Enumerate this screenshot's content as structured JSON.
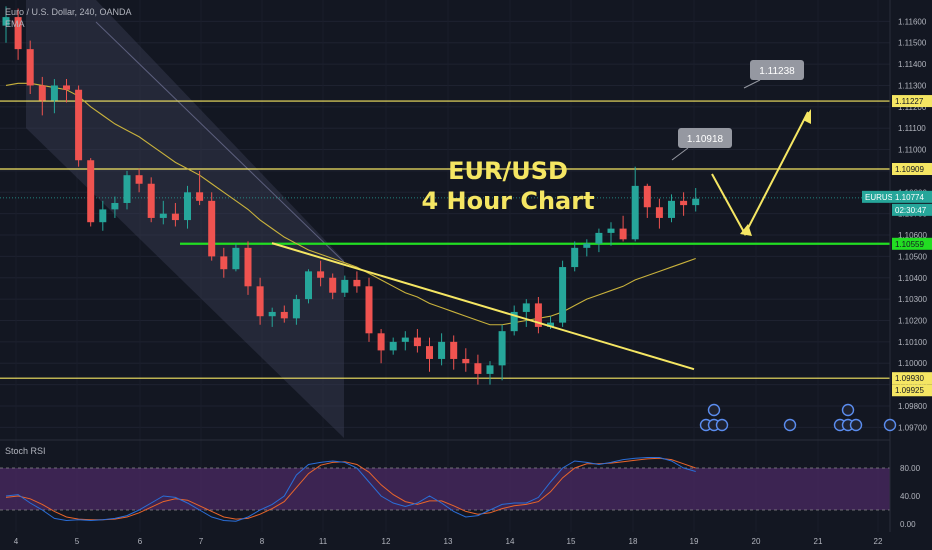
{
  "header": {
    "symbol_line": "Euro / U.S. Dollar, 240, OANDA",
    "indicator": "EMA"
  },
  "annotation": {
    "line1": "EUR/USD",
    "line2": "4 Hour Chart"
  },
  "callouts": [
    {
      "text": "1.11238",
      "price": 1.11238
    },
    {
      "text": "1.10918",
      "price": 1.10918
    }
  ],
  "price_axis": {
    "ticks": [
      "1.11600",
      "1.11500",
      "1.11400",
      "1.11300",
      "1.11200",
      "1.11100",
      "1.11000",
      "1.10900",
      "1.10800",
      "1.10700",
      "1.10600",
      "1.10500",
      "1.10400",
      "1.10300",
      "1.10200",
      "1.10100",
      "1.10000",
      "1.09900",
      "1.09800",
      "1.09700"
    ],
    "tags": [
      {
        "text": "1.11227",
        "price": 1.11227,
        "color": "#f5e663"
      },
      {
        "text": "1.10909",
        "price": 1.10909,
        "color": "#f5e663"
      },
      {
        "text": "EURUSD",
        "price": 1.10774,
        "color": "#26a69a"
      },
      {
        "text": "1.10774",
        "price": 1.10774,
        "color": "#26a69a"
      },
      {
        "text": "02:30:47",
        "price": 1.107,
        "color": "#26a69a"
      },
      {
        "text": "1.10559",
        "price": 1.10559,
        "color": "#22dd22"
      },
      {
        "text": "1.09930",
        "price": 1.0993,
        "color": "#f5e663"
      },
      {
        "text": "1.09925",
        "price": 1.09925,
        "color": "#f5e663"
      }
    ]
  },
  "time_axis": {
    "labels": [
      "4",
      "5",
      "6",
      "7",
      "8",
      "11",
      "12",
      "13",
      "14",
      "15",
      "18",
      "19",
      "20",
      "21",
      "22"
    ]
  },
  "rsi": {
    "title": "Stoch RSI",
    "ticks": [
      "80.00",
      "40.00",
      "0.00"
    ]
  },
  "colors": {
    "up": "#26a69a",
    "down": "#ef5350",
    "level": "#f5e663",
    "support": "#22dd22",
    "ema": "#c9b23c",
    "rsi_k": "#2a6ed8",
    "rsi_d": "#e8652b",
    "rsi_band": "#4b2a63"
  },
  "chart_data": {
    "type": "candlestick",
    "price_range": [
      1.0965,
      1.117
    ],
    "horizontal_levels": [
      1.11227,
      1.10909,
      1.0993
    ],
    "support_level": 1.10559,
    "last_price": 1.10774,
    "candles": [
      {
        "o": 1.1158,
        "h": 1.1167,
        "l": 1.115,
        "c": 1.1162
      },
      {
        "o": 1.1162,
        "h": 1.1166,
        "l": 1.1142,
        "c": 1.1147
      },
      {
        "o": 1.1147,
        "h": 1.1151,
        "l": 1.1126,
        "c": 1.113
      },
      {
        "o": 1.113,
        "h": 1.1134,
        "l": 1.1116,
        "c": 1.1123
      },
      {
        "o": 1.1123,
        "h": 1.1133,
        "l": 1.1117,
        "c": 1.113
      },
      {
        "o": 1.113,
        "h": 1.1133,
        "l": 1.1122,
        "c": 1.1128
      },
      {
        "o": 1.1128,
        "h": 1.113,
        "l": 1.1092,
        "c": 1.1095
      },
      {
        "o": 1.1095,
        "h": 1.1096,
        "l": 1.1064,
        "c": 1.1066
      },
      {
        "o": 1.1066,
        "h": 1.1076,
        "l": 1.1062,
        "c": 1.1072
      },
      {
        "o": 1.1072,
        "h": 1.1078,
        "l": 1.1068,
        "c": 1.1075
      },
      {
        "o": 1.1075,
        "h": 1.109,
        "l": 1.1072,
        "c": 1.1088
      },
      {
        "o": 1.1088,
        "h": 1.1091,
        "l": 1.108,
        "c": 1.1084
      },
      {
        "o": 1.1084,
        "h": 1.1087,
        "l": 1.1066,
        "c": 1.1068
      },
      {
        "o": 1.1068,
        "h": 1.1076,
        "l": 1.1065,
        "c": 1.107
      },
      {
        "o": 1.107,
        "h": 1.1075,
        "l": 1.1064,
        "c": 1.1067
      },
      {
        "o": 1.1067,
        "h": 1.1083,
        "l": 1.1063,
        "c": 1.108
      },
      {
        "o": 1.108,
        "h": 1.109,
        "l": 1.1074,
        "c": 1.1076
      },
      {
        "o": 1.1076,
        "h": 1.108,
        "l": 1.1048,
        "c": 1.105
      },
      {
        "o": 1.105,
        "h": 1.1054,
        "l": 1.104,
        "c": 1.1044
      },
      {
        "o": 1.1044,
        "h": 1.1056,
        "l": 1.1043,
        "c": 1.1054
      },
      {
        "o": 1.1054,
        "h": 1.1057,
        "l": 1.1032,
        "c": 1.1036
      },
      {
        "o": 1.1036,
        "h": 1.104,
        "l": 1.1018,
        "c": 1.1022
      },
      {
        "o": 1.1022,
        "h": 1.1026,
        "l": 1.1017,
        "c": 1.1024
      },
      {
        "o": 1.1024,
        "h": 1.1027,
        "l": 1.1019,
        "c": 1.1021
      },
      {
        "o": 1.1021,
        "h": 1.1032,
        "l": 1.1018,
        "c": 1.103
      },
      {
        "o": 1.103,
        "h": 1.1044,
        "l": 1.1028,
        "c": 1.1043
      },
      {
        "o": 1.1043,
        "h": 1.1048,
        "l": 1.1036,
        "c": 1.104
      },
      {
        "o": 1.104,
        "h": 1.1042,
        "l": 1.103,
        "c": 1.1033
      },
      {
        "o": 1.1033,
        "h": 1.1041,
        "l": 1.1031,
        "c": 1.1039
      },
      {
        "o": 1.1039,
        "h": 1.1043,
        "l": 1.1033,
        "c": 1.1036
      },
      {
        "o": 1.1036,
        "h": 1.104,
        "l": 1.101,
        "c": 1.1014
      },
      {
        "o": 1.1014,
        "h": 1.1016,
        "l": 1.1,
        "c": 1.1006
      },
      {
        "o": 1.1006,
        "h": 1.1012,
        "l": 1.1004,
        "c": 1.101
      },
      {
        "o": 1.101,
        "h": 1.1015,
        "l": 1.1006,
        "c": 1.1012
      },
      {
        "o": 1.1012,
        "h": 1.1016,
        "l": 1.1005,
        "c": 1.1008
      },
      {
        "o": 1.1008,
        "h": 1.1012,
        "l": 1.0996,
        "c": 1.1002
      },
      {
        "o": 1.1002,
        "h": 1.1014,
        "l": 1.0999,
        "c": 1.101
      },
      {
        "o": 1.101,
        "h": 1.1013,
        "l": 1.0997,
        "c": 1.1002
      },
      {
        "o": 1.1002,
        "h": 1.1007,
        "l": 1.0996,
        "c": 1.1
      },
      {
        "o": 1.1,
        "h": 1.1004,
        "l": 1.099,
        "c": 1.0995
      },
      {
        "o": 1.0995,
        "h": 1.1001,
        "l": 1.099,
        "c": 1.0999
      },
      {
        "o": 1.0999,
        "h": 1.1018,
        "l": 1.0992,
        "c": 1.1015
      },
      {
        "o": 1.1015,
        "h": 1.1027,
        "l": 1.1013,
        "c": 1.1024
      },
      {
        "o": 1.1024,
        "h": 1.103,
        "l": 1.1017,
        "c": 1.1028
      },
      {
        "o": 1.1028,
        "h": 1.1031,
        "l": 1.1014,
        "c": 1.1017
      },
      {
        "o": 1.1017,
        "h": 1.1022,
        "l": 1.1016,
        "c": 1.1019
      },
      {
        "o": 1.1019,
        "h": 1.1048,
        "l": 1.1017,
        "c": 1.1045
      },
      {
        "o": 1.1045,
        "h": 1.1057,
        "l": 1.1043,
        "c": 1.1054
      },
      {
        "o": 1.1054,
        "h": 1.1058,
        "l": 1.105,
        "c": 1.1056
      },
      {
        "o": 1.1056,
        "h": 1.1063,
        "l": 1.1052,
        "c": 1.1061
      },
      {
        "o": 1.1061,
        "h": 1.1066,
        "l": 1.1055,
        "c": 1.1063
      },
      {
        "o": 1.1063,
        "h": 1.1069,
        "l": 1.1057,
        "c": 1.1058
      },
      {
        "o": 1.1058,
        "h": 1.1092,
        "l": 1.1057,
        "c": 1.1083
      },
      {
        "o": 1.1083,
        "h": 1.1084,
        "l": 1.1068,
        "c": 1.1073
      },
      {
        "o": 1.1073,
        "h": 1.1077,
        "l": 1.1063,
        "c": 1.1068
      },
      {
        "o": 1.1068,
        "h": 1.1079,
        "l": 1.1066,
        "c": 1.1076
      },
      {
        "o": 1.1076,
        "h": 1.108,
        "l": 1.1069,
        "c": 1.1074
      },
      {
        "o": 1.1074,
        "h": 1.1082,
        "l": 1.1071,
        "c": 1.1077
      }
    ],
    "ema": [
      1.113,
      1.1131,
      1.1131,
      1.113,
      1.1129,
      1.1128,
      1.1125,
      1.112,
      1.1116,
      1.1112,
      1.1109,
      1.1106,
      1.1102,
      1.1098,
      1.1094,
      1.1091,
      1.1088,
      1.1084,
      1.108,
      1.1076,
      1.1072,
      1.1067,
      1.1063,
      1.1059,
      1.1056,
      1.1053,
      1.1051,
      1.1049,
      1.1047,
      1.1045,
      1.1042,
      1.1039,
      1.1036,
      1.1033,
      1.1031,
      1.1028,
      1.1026,
      1.1024,
      1.1022,
      1.102,
      1.1018,
      1.1018,
      1.1019,
      1.102,
      1.1021,
      1.1022,
      1.1024,
      1.1027,
      1.103,
      1.1032,
      1.1034,
      1.1036,
      1.1039,
      1.1041,
      1.1043,
      1.1045,
      1.1047,
      1.1049
    ],
    "stoch_rsi": {
      "k": [
        40,
        42,
        30,
        20,
        8,
        5,
        6,
        5,
        6,
        8,
        12,
        20,
        30,
        40,
        38,
        30,
        20,
        10,
        5,
        4,
        10,
        20,
        28,
        40,
        70,
        85,
        88,
        90,
        88,
        80,
        60,
        40,
        30,
        25,
        30,
        40,
        30,
        18,
        10,
        12,
        20,
        28,
        30,
        30,
        38,
        60,
        80,
        90,
        88,
        85,
        88,
        92,
        94,
        95,
        95,
        90,
        80,
        75
      ],
      "d": [
        38,
        40,
        36,
        28,
        18,
        10,
        7,
        6,
        6,
        7,
        10,
        16,
        24,
        32,
        36,
        34,
        26,
        18,
        10,
        7,
        8,
        14,
        22,
        32,
        52,
        72,
        84,
        88,
        89,
        85,
        74,
        56,
        42,
        32,
        28,
        33,
        33,
        26,
        18,
        14,
        16,
        22,
        26,
        28,
        32,
        46,
        66,
        80,
        86,
        86,
        87,
        89,
        91,
        93,
        94,
        92,
        86,
        80
      ]
    }
  }
}
